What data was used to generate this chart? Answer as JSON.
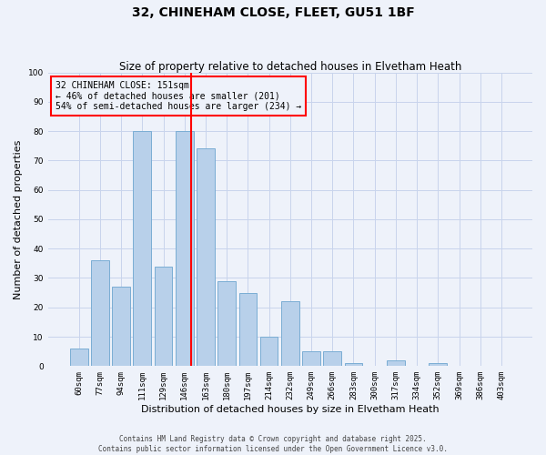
{
  "title": "32, CHINEHAM CLOSE, FLEET, GU51 1BF",
  "subtitle": "Size of property relative to detached houses in Elvetham Heath",
  "xlabel": "Distribution of detached houses by size in Elvetham Heath",
  "ylabel": "Number of detached properties",
  "categories": [
    "60sqm",
    "77sqm",
    "94sqm",
    "111sqm",
    "129sqm",
    "146sqm",
    "163sqm",
    "180sqm",
    "197sqm",
    "214sqm",
    "232sqm",
    "249sqm",
    "266sqm",
    "283sqm",
    "300sqm",
    "317sqm",
    "334sqm",
    "352sqm",
    "369sqm",
    "386sqm",
    "403sqm"
  ],
  "values": [
    6,
    36,
    27,
    80,
    34,
    80,
    74,
    29,
    25,
    10,
    22,
    5,
    5,
    1,
    0,
    2,
    0,
    1,
    0,
    0,
    0
  ],
  "bar_color": "#b8d0ea",
  "bar_edge_color": "#7aadd4",
  "background_color": "#eef2fa",
  "grid_color": "#c8d4ec",
  "ylim": [
    0,
    100
  ],
  "yticks": [
    0,
    10,
    20,
    30,
    40,
    50,
    60,
    70,
    80,
    90,
    100
  ],
  "annotation_text": "32 CHINEHAM CLOSE: 151sqm\n← 46% of detached houses are smaller (201)\n54% of semi-detached houses are larger (234) →",
  "footer_line1": "Contains HM Land Registry data © Crown copyright and database right 2025.",
  "footer_line2": "Contains public sector information licensed under the Open Government Licence v3.0.",
  "title_fontsize": 10,
  "subtitle_fontsize": 8.5,
  "tick_fontsize": 6.5,
  "ylabel_fontsize": 8,
  "xlabel_fontsize": 8,
  "annotation_fontsize": 7,
  "footer_fontsize": 5.5
}
